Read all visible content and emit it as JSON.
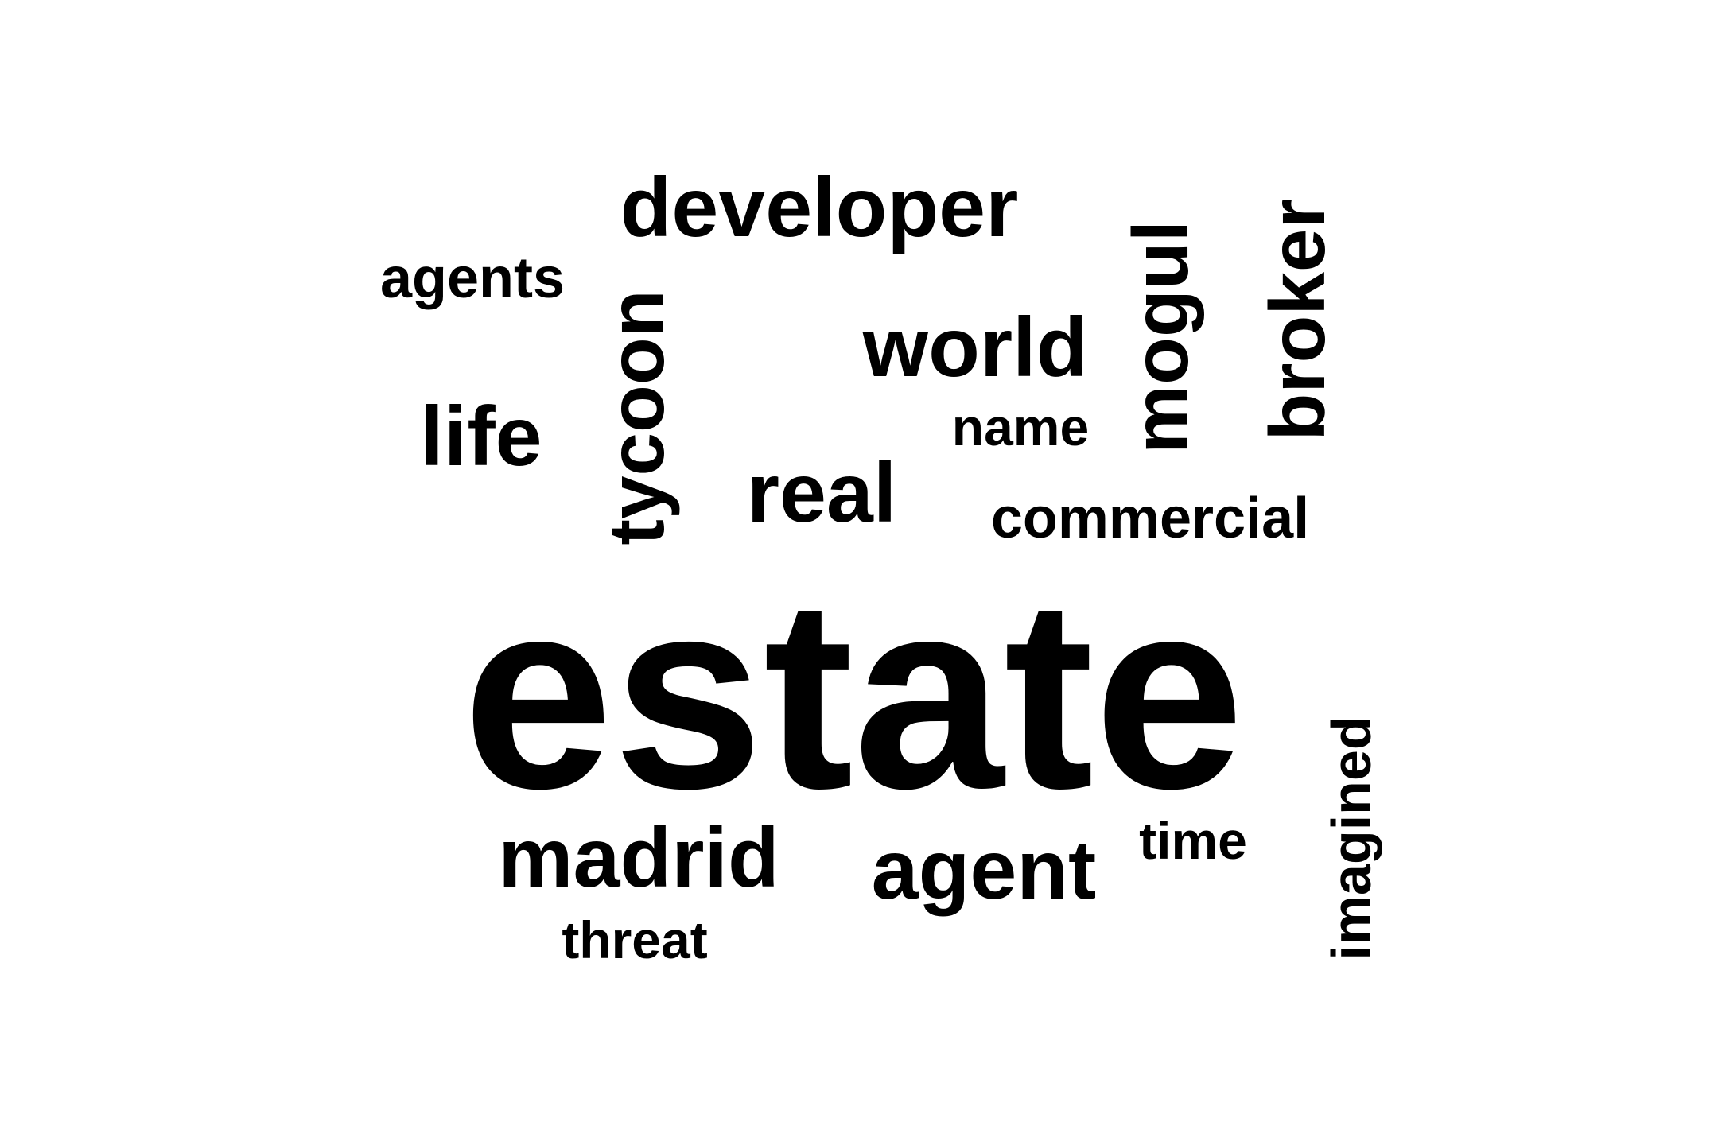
{
  "word_cloud": {
    "text_color": "#000000",
    "background_color": "#ffffff",
    "words": [
      {
        "text": "estate",
        "orientation": "horizontal"
      },
      {
        "text": "developer",
        "orientation": "horizontal"
      },
      {
        "text": "world",
        "orientation": "horizontal"
      },
      {
        "text": "real",
        "orientation": "horizontal"
      },
      {
        "text": "madrid",
        "orientation": "horizontal"
      },
      {
        "text": "agent",
        "orientation": "horizontal"
      },
      {
        "text": "life",
        "orientation": "horizontal"
      },
      {
        "text": "commercial",
        "orientation": "horizontal"
      },
      {
        "text": "agents",
        "orientation": "horizontal"
      },
      {
        "text": "name",
        "orientation": "horizontal"
      },
      {
        "text": "threat",
        "orientation": "horizontal"
      },
      {
        "text": "time",
        "orientation": "horizontal"
      },
      {
        "text": "tycoon",
        "orientation": "vertical"
      },
      {
        "text": "mogul",
        "orientation": "vertical"
      },
      {
        "text": "broker",
        "orientation": "vertical"
      },
      {
        "text": "imagined",
        "orientation": "vertical"
      }
    ]
  }
}
